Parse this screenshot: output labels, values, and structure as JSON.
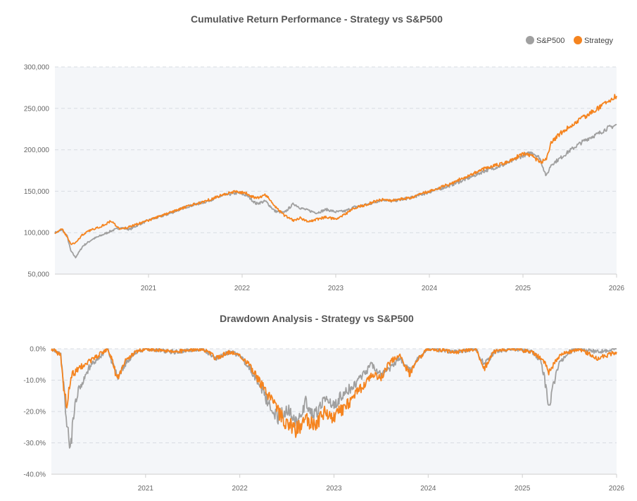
{
  "colors": {
    "sp500": "#a0a0a0",
    "strategy": "#f5841f",
    "plot_bg": "#f4f6f9",
    "grid": "#d8dce2",
    "title": "#555555",
    "tick": "#666666"
  },
  "legend": {
    "items": [
      {
        "label": "S&P500",
        "color": "#a0a0a0"
      },
      {
        "label": "Strategy",
        "color": "#f5841f"
      }
    ]
  },
  "chart_data": [
    {
      "type": "line",
      "title": "Cumulative Return Performance - Strategy vs S&P500",
      "xlabel": "",
      "ylabel": "",
      "xlim": [
        2020.0,
        2026.0
      ],
      "ylim": [
        50000,
        300000
      ],
      "y_ticks": [
        50000,
        100000,
        150000,
        200000,
        250000,
        300000
      ],
      "y_tick_labels": [
        "50,000",
        "100,000",
        "150,000",
        "200,000",
        "250,000",
        "300,000"
      ],
      "x_ticks": [
        2021,
        2022,
        2023,
        2024,
        2025,
        2026
      ],
      "x_tick_labels": [
        "2021",
        "2022",
        "2023",
        "2024",
        "2025",
        "2026"
      ],
      "grid": true,
      "legend_position": "top-right",
      "series": [
        {
          "name": "S&P500",
          "x": [
            2020.0,
            2020.08,
            2020.13,
            2020.17,
            2020.22,
            2020.3,
            2020.4,
            2020.5,
            2020.6,
            2020.7,
            2020.8,
            2020.9,
            2021.0,
            2021.2,
            2021.4,
            2021.6,
            2021.8,
            2021.95,
            2022.05,
            2022.15,
            2022.25,
            2022.35,
            2022.45,
            2022.55,
            2022.62,
            2022.7,
            2022.8,
            2022.9,
            2023.0,
            2023.1,
            2023.2,
            2023.3,
            2023.4,
            2023.5,
            2023.6,
            2023.8,
            2024.0,
            2024.2,
            2024.4,
            2024.6,
            2024.8,
            2025.0,
            2025.1,
            2025.18,
            2025.25,
            2025.3,
            2025.4,
            2025.5,
            2025.6,
            2025.7,
            2025.8,
            2025.9,
            2026.0
          ],
          "values": [
            100000,
            103000,
            96000,
            78000,
            70000,
            84000,
            92000,
            97000,
            102000,
            106000,
            104000,
            110000,
            115000,
            122000,
            131000,
            137000,
            145000,
            148000,
            145000,
            135000,
            138000,
            126000,
            124000,
            135000,
            130000,
            127000,
            124000,
            128000,
            125000,
            126000,
            131000,
            133000,
            136000,
            140000,
            138000,
            142000,
            149000,
            156000,
            165000,
            175000,
            182000,
            193000,
            197000,
            190000,
            168000,
            182000,
            190000,
            199000,
            207000,
            214000,
            219000,
            226000,
            230000
          ]
        },
        {
          "name": "Strategy",
          "x": [
            2020.0,
            2020.08,
            2020.13,
            2020.17,
            2020.22,
            2020.3,
            2020.4,
            2020.5,
            2020.6,
            2020.7,
            2020.8,
            2020.9,
            2021.0,
            2021.2,
            2021.4,
            2021.6,
            2021.8,
            2021.95,
            2022.05,
            2022.15,
            2022.25,
            2022.35,
            2022.45,
            2022.55,
            2022.62,
            2022.7,
            2022.8,
            2022.9,
            2023.0,
            2023.1,
            2023.2,
            2023.3,
            2023.4,
            2023.5,
            2023.6,
            2023.8,
            2024.0,
            2024.2,
            2024.4,
            2024.6,
            2024.8,
            2025.0,
            2025.1,
            2025.18,
            2025.25,
            2025.3,
            2025.4,
            2025.5,
            2025.6,
            2025.7,
            2025.8,
            2025.9,
            2026.0
          ],
          "values": [
            100000,
            104000,
            95000,
            86000,
            88000,
            98000,
            104000,
            108000,
            114000,
            104000,
            107000,
            111000,
            115000,
            123000,
            131000,
            138000,
            146000,
            150000,
            147000,
            141000,
            146000,
            132000,
            121000,
            115000,
            118000,
            113000,
            116000,
            119000,
            116000,
            122000,
            130000,
            133000,
            137000,
            140000,
            139000,
            142000,
            150000,
            158000,
            168000,
            178000,
            184000,
            195000,
            192000,
            185000,
            188000,
            208000,
            220000,
            228000,
            236000,
            243000,
            250000,
            258000,
            265000
          ]
        }
      ]
    },
    {
      "type": "line",
      "title": "Drawdown Analysis - Strategy vs S&P500",
      "xlabel": "",
      "ylabel": "",
      "xlim": [
        2020.0,
        2026.0
      ],
      "ylim": [
        -40,
        0
      ],
      "y_ticks": [
        0,
        -10,
        -20,
        -30,
        -40
      ],
      "y_tick_labels": [
        "0.0%",
        "-10.0%",
        "-20.0%",
        "-30.0%",
        "-40.0%"
      ],
      "x_ticks": [
        2021,
        2022,
        2023,
        2024,
        2025,
        2026
      ],
      "x_tick_labels": [
        "2021",
        "2022",
        "2023",
        "2024",
        "2025",
        "2026"
      ],
      "grid": true,
      "series": [
        {
          "name": "S&P500",
          "x": [
            2020.0,
            2020.1,
            2020.13,
            2020.17,
            2020.2,
            2020.23,
            2020.3,
            2020.4,
            2020.5,
            2020.6,
            2020.65,
            2020.7,
            2020.8,
            2020.9,
            2021.0,
            2021.3,
            2021.6,
            2021.75,
            2021.9,
            2022.0,
            2022.1,
            2022.2,
            2022.3,
            2022.4,
            2022.5,
            2022.6,
            2022.7,
            2022.8,
            2022.9,
            2023.0,
            2023.1,
            2023.2,
            2023.3,
            2023.4,
            2023.5,
            2023.6,
            2023.7,
            2023.8,
            2023.9,
            2024.0,
            2024.3,
            2024.5,
            2024.6,
            2024.7,
            2024.9,
            2025.1,
            2025.2,
            2025.25,
            2025.28,
            2025.35,
            2025.4,
            2025.5,
            2025.6,
            2025.8,
            2026.0
          ],
          "values": [
            0,
            -2,
            -12,
            -25,
            -33,
            -22,
            -12,
            -6,
            -3,
            0,
            -5,
            -9,
            -4,
            -1,
            0,
            -1,
            0,
            -3,
            -1,
            -2,
            -6,
            -11,
            -17,
            -22,
            -19,
            -23,
            -17,
            -21,
            -16,
            -18,
            -14,
            -12,
            -9,
            -5,
            -8,
            -6,
            -3,
            -7,
            -3,
            0,
            -1,
            0,
            -5,
            -1,
            0,
            -1,
            -4,
            -12,
            -18,
            -9,
            -4,
            -1,
            0,
            -1,
            0
          ]
        },
        {
          "name": "Strategy",
          "x": [
            2020.0,
            2020.1,
            2020.13,
            2020.17,
            2020.2,
            2020.23,
            2020.3,
            2020.4,
            2020.5,
            2020.6,
            2020.65,
            2020.7,
            2020.8,
            2020.9,
            2021.0,
            2021.3,
            2021.6,
            2021.75,
            2021.9,
            2022.0,
            2022.1,
            2022.2,
            2022.3,
            2022.4,
            2022.5,
            2022.6,
            2022.7,
            2022.8,
            2022.9,
            2023.0,
            2023.1,
            2023.2,
            2023.3,
            2023.4,
            2023.5,
            2023.6,
            2023.7,
            2023.8,
            2023.9,
            2024.0,
            2024.3,
            2024.5,
            2024.6,
            2024.7,
            2024.9,
            2025.1,
            2025.2,
            2025.25,
            2025.28,
            2025.35,
            2025.4,
            2025.5,
            2025.6,
            2025.8,
            2026.0
          ],
          "values": [
            0,
            -2,
            -14,
            -18,
            -10,
            -8,
            -6,
            -4,
            -2,
            0,
            -4,
            -10,
            -3,
            -1,
            0,
            -1,
            0,
            -3,
            -1,
            -2,
            -5,
            -10,
            -15,
            -20,
            -24,
            -26,
            -22,
            -25,
            -20,
            -22,
            -19,
            -16,
            -12,
            -8,
            -9,
            -4,
            -2,
            -8,
            -3,
            0,
            -1,
            0,
            -6,
            -1,
            0,
            -1,
            -3,
            -5,
            -8,
            -4,
            -2,
            -1,
            0,
            -3,
            -1
          ]
        }
      ]
    }
  ]
}
